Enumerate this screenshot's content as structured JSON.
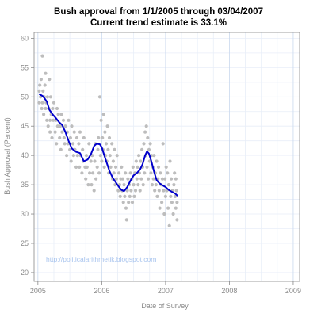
{
  "chart_data": {
    "type": "scatter",
    "title_line1": "Bush approval from 1/1/2005 through 03/04/2007",
    "title_line2": "Current trend estimate is 33.1%",
    "xlabel": "Date of Survey",
    "ylabel": "Bush Approval (Percent)",
    "xlim": [
      2004.94,
      2009.1
    ],
    "ylim": [
      18.5,
      61
    ],
    "x_ticks": [
      2005,
      2006,
      2007,
      2008,
      2009
    ],
    "x_tick_labels": [
      "2005",
      "2006",
      "2007",
      "2008",
      "2009"
    ],
    "y_ticks": [
      20,
      25,
      30,
      35,
      40,
      45,
      50,
      55,
      60
    ],
    "y_tick_labels": [
      "20",
      "25",
      "30",
      "35",
      "40",
      "45",
      "50",
      "55",
      "60"
    ],
    "grid": true,
    "watermark": "http://politicalarithmetik.blogspot.com",
    "colors": {
      "points": "#bdbdbd",
      "trend": "#0000cc",
      "grid": "#e8eef8",
      "vgrid_major": "#c9d8ee",
      "frame": "#888888",
      "watermark": "#a8c4ee"
    },
    "series": [
      {
        "type": "scatter",
        "points": [
          [
            2005.02,
            49
          ],
          [
            2005.02,
            51
          ],
          [
            2005.03,
            52
          ],
          [
            2005.04,
            50
          ],
          [
            2005.05,
            53
          ],
          [
            2005.06,
            48
          ],
          [
            2005.07,
            57
          ],
          [
            2005.07,
            49
          ],
          [
            2005.08,
            51
          ],
          [
            2005.09,
            47
          ],
          [
            2005.1,
            50
          ],
          [
            2005.11,
            52
          ],
          [
            2005.12,
            54
          ],
          [
            2005.12,
            48
          ],
          [
            2005.13,
            49
          ],
          [
            2005.14,
            46
          ],
          [
            2005.15,
            50
          ],
          [
            2005.16,
            45
          ],
          [
            2005.17,
            48
          ],
          [
            2005.18,
            53
          ],
          [
            2005.19,
            44
          ],
          [
            2005.19,
            46
          ],
          [
            2005.2,
            50
          ],
          [
            2005.21,
            47
          ],
          [
            2005.22,
            43
          ],
          [
            2005.23,
            48
          ],
          [
            2005.24,
            46
          ],
          [
            2005.25,
            49
          ],
          [
            2005.27,
            44
          ],
          [
            2005.28,
            46
          ],
          [
            2005.29,
            42
          ],
          [
            2005.3,
            48
          ],
          [
            2005.31,
            45
          ],
          [
            2005.32,
            47
          ],
          [
            2005.34,
            43
          ],
          [
            2005.35,
            45
          ],
          [
            2005.36,
            41
          ],
          [
            2005.37,
            47
          ],
          [
            2005.38,
            44
          ],
          [
            2005.4,
            46
          ],
          [
            2005.41,
            43
          ],
          [
            2005.42,
            42
          ],
          [
            2005.43,
            45
          ],
          [
            2005.45,
            40
          ],
          [
            2005.46,
            44
          ],
          [
            2005.47,
            42
          ],
          [
            2005.48,
            46
          ],
          [
            2005.5,
            41
          ],
          [
            2005.51,
            43
          ],
          [
            2005.52,
            39
          ],
          [
            2005.53,
            45
          ],
          [
            2005.55,
            42
          ],
          [
            2005.56,
            40
          ],
          [
            2005.57,
            44
          ],
          [
            2005.58,
            41
          ],
          [
            2005.6,
            38
          ],
          [
            2005.61,
            43
          ],
          [
            2005.62,
            40
          ],
          [
            2005.64,
            42
          ],
          [
            2005.65,
            38
          ],
          [
            2005.66,
            44
          ],
          [
            2005.67,
            40
          ],
          [
            2005.69,
            37
          ],
          [
            2005.7,
            41
          ],
          [
            2005.71,
            39
          ],
          [
            2005.72,
            43
          ],
          [
            2005.74,
            38
          ],
          [
            2005.75,
            36
          ],
          [
            2005.76,
            40
          ],
          [
            2005.77,
            38
          ],
          [
            2005.79,
            35
          ],
          [
            2005.8,
            42
          ],
          [
            2005.81,
            37
          ],
          [
            2005.83,
            39
          ],
          [
            2005.84,
            35
          ],
          [
            2005.85,
            40
          ],
          [
            2005.86,
            37
          ],
          [
            2005.88,
            34
          ],
          [
            2005.89,
            39
          ],
          [
            2005.9,
            42
          ],
          [
            2005.91,
            36
          ],
          [
            2005.93,
            38
          ],
          [
            2005.94,
            41
          ],
          [
            2005.95,
            43
          ],
          [
            2005.96,
            37
          ],
          [
            2005.97,
            50
          ],
          [
            2005.98,
            40
          ],
          [
            2005.99,
            46
          ],
          [
            2006.0,
            39
          ],
          [
            2006.01,
            43
          ],
          [
            2006.02,
            41
          ],
          [
            2006.03,
            47
          ],
          [
            2006.04,
            38
          ],
          [
            2006.05,
            44
          ],
          [
            2006.06,
            40
          ],
          [
            2006.07,
            42
          ],
          [
            2006.08,
            39
          ],
          [
            2006.09,
            45
          ],
          [
            2006.1,
            41
          ],
          [
            2006.11,
            37
          ],
          [
            2006.12,
            43
          ],
          [
            2006.13,
            40
          ],
          [
            2006.14,
            38
          ],
          [
            2006.16,
            42
          ],
          [
            2006.17,
            36
          ],
          [
            2006.18,
            39
          ],
          [
            2006.19,
            37
          ],
          [
            2006.2,
            41
          ],
          [
            2006.21,
            35
          ],
          [
            2006.22,
            38
          ],
          [
            2006.23,
            36
          ],
          [
            2006.24,
            40
          ],
          [
            2006.26,
            34
          ],
          [
            2006.27,
            37
          ],
          [
            2006.28,
            35
          ],
          [
            2006.29,
            33
          ],
          [
            2006.3,
            36
          ],
          [
            2006.31,
            38
          ],
          [
            2006.32,
            34
          ],
          [
            2006.33,
            36
          ],
          [
            2006.34,
            32
          ],
          [
            2006.35,
            35
          ],
          [
            2006.36,
            33
          ],
          [
            2006.37,
            37
          ],
          [
            2006.38,
            31
          ],
          [
            2006.39,
            29
          ],
          [
            2006.4,
            34
          ],
          [
            2006.41,
            36
          ],
          [
            2006.42,
            32
          ],
          [
            2006.43,
            35
          ],
          [
            2006.44,
            33
          ],
          [
            2006.45,
            37
          ],
          [
            2006.46,
            34
          ],
          [
            2006.47,
            36
          ],
          [
            2006.48,
            32
          ],
          [
            2006.49,
            38
          ],
          [
            2006.5,
            35
          ],
          [
            2006.51,
            33
          ],
          [
            2006.52,
            37
          ],
          [
            2006.53,
            34
          ],
          [
            2006.54,
            39
          ],
          [
            2006.55,
            36
          ],
          [
            2006.56,
            38
          ],
          [
            2006.57,
            35
          ],
          [
            2006.58,
            40
          ],
          [
            2006.59,
            37
          ],
          [
            2006.6,
            34
          ],
          [
            2006.61,
            39
          ],
          [
            2006.62,
            36
          ],
          [
            2006.63,
            41
          ],
          [
            2006.64,
            38
          ],
          [
            2006.65,
            35
          ],
          [
            2006.66,
            42
          ],
          [
            2006.67,
            37
          ],
          [
            2006.68,
            44
          ],
          [
            2006.69,
            40
          ],
          [
            2006.7,
            45
          ],
          [
            2006.71,
            38
          ],
          [
            2006.72,
            43
          ],
          [
            2006.73,
            36
          ],
          [
            2006.74,
            41
          ],
          [
            2006.75,
            39
          ],
          [
            2006.76,
            42
          ],
          [
            2006.77,
            37
          ],
          [
            2006.78,
            40
          ],
          [
            2006.79,
            35
          ],
          [
            2006.8,
            38
          ],
          [
            2006.81,
            36
          ],
          [
            2006.82,
            40
          ],
          [
            2006.83,
            34
          ],
          [
            2006.84,
            37
          ],
          [
            2006.85,
            35
          ],
          [
            2006.86,
            39
          ],
          [
            2006.87,
            33
          ],
          [
            2006.88,
            36
          ],
          [
            2006.89,
            38
          ],
          [
            2006.9,
            34
          ],
          [
            2006.91,
            31
          ],
          [
            2006.92,
            37
          ],
          [
            2006.93,
            35
          ],
          [
            2006.94,
            32
          ],
          [
            2006.95,
            36
          ],
          [
            2006.96,
            42
          ],
          [
            2006.97,
            34
          ],
          [
            2006.98,
            30
          ],
          [
            2006.99,
            36
          ],
          [
            2007.0,
            33
          ],
          [
            2007.01,
            38
          ],
          [
            2007.02,
            34
          ],
          [
            2007.03,
            37
          ],
          [
            2007.04,
            31
          ],
          [
            2007.05,
            35
          ],
          [
            2007.06,
            28
          ],
          [
            2007.07,
            39
          ],
          [
            2007.08,
            33
          ],
          [
            2007.09,
            36
          ],
          [
            2007.1,
            32
          ],
          [
            2007.11,
            34
          ],
          [
            2007.12,
            30
          ],
          [
            2007.13,
            35
          ],
          [
            2007.14,
            37
          ],
          [
            2007.15,
            33
          ],
          [
            2007.16,
            31
          ],
          [
            2007.17,
            34
          ],
          [
            2007.18,
            32
          ],
          [
            2007.18,
            29
          ],
          [
            2007.16,
            36
          ]
        ]
      },
      {
        "type": "line",
        "points": [
          [
            2005.02,
            50.5
          ],
          [
            2005.08,
            50.1
          ],
          [
            2005.14,
            49.2
          ],
          [
            2005.18,
            47.8
          ],
          [
            2005.23,
            47.0
          ],
          [
            2005.28,
            46.4
          ],
          [
            2005.33,
            45.7
          ],
          [
            2005.38,
            45.2
          ],
          [
            2005.43,
            44.0
          ],
          [
            2005.48,
            42.5
          ],
          [
            2005.53,
            41.2
          ],
          [
            2005.6,
            40.6
          ],
          [
            2005.66,
            40.4
          ],
          [
            2005.72,
            39.0
          ],
          [
            2005.78,
            39.3
          ],
          [
            2005.83,
            40.2
          ],
          [
            2005.88,
            41.6
          ],
          [
            2005.92,
            42.0
          ],
          [
            2005.97,
            41.9
          ],
          [
            2006.0,
            41.4
          ],
          [
            2006.04,
            40.0
          ],
          [
            2006.08,
            38.7
          ],
          [
            2006.12,
            37.4
          ],
          [
            2006.17,
            36.2
          ],
          [
            2006.22,
            35.4
          ],
          [
            2006.27,
            34.6
          ],
          [
            2006.31,
            34.1
          ],
          [
            2006.35,
            33.9
          ],
          [
            2006.4,
            34.6
          ],
          [
            2006.45,
            35.7
          ],
          [
            2006.5,
            36.6
          ],
          [
            2006.55,
            37.0
          ],
          [
            2006.6,
            37.6
          ],
          [
            2006.64,
            38.5
          ],
          [
            2006.68,
            40.0
          ],
          [
            2006.71,
            40.7
          ],
          [
            2006.74,
            40.3
          ],
          [
            2006.78,
            38.9
          ],
          [
            2006.82,
            37.2
          ],
          [
            2006.86,
            35.8
          ],
          [
            2006.9,
            35.3
          ],
          [
            2006.95,
            34.9
          ],
          [
            2007.0,
            34.6
          ],
          [
            2007.05,
            34.1
          ],
          [
            2007.1,
            33.8
          ],
          [
            2007.15,
            33.5
          ],
          [
            2007.19,
            33.1
          ]
        ]
      }
    ]
  }
}
